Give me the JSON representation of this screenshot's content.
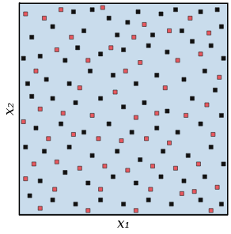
{
  "chart_data": {
    "type": "scatter",
    "x_label": "x₁",
    "y_label": "x₂",
    "xlim": [
      0,
      1
    ],
    "ylim": [
      0,
      1
    ],
    "tick_labels": false,
    "grid": false,
    "series": [
      {
        "color": "#111111",
        "marker": "square",
        "x": [
          0.26,
          0.35,
          0.43,
          0.52,
          0.57,
          0.68,
          0.75,
          0.87,
          0.95,
          0.97,
          0.78,
          0.64,
          0.47,
          0.31,
          0.16,
          0.06,
          0.02,
          0.1,
          0.22,
          0.28,
          0.39,
          0.5,
          0.62,
          0.71,
          0.83,
          0.92,
          0.98,
          0.89,
          0.79,
          0.66,
          0.56,
          0.45,
          0.34,
          0.24,
          0.13,
          0.04,
          0.06,
          0.16,
          0.27,
          0.39,
          0.5,
          0.6,
          0.71,
          0.83,
          0.94,
          0.97,
          0.87,
          0.76,
          0.66,
          0.54,
          0.43,
          0.31,
          0.2,
          0.08,
          0.03,
          0.12,
          0.24,
          0.35,
          0.47,
          0.58,
          0.69,
          0.81,
          0.92,
          0.98,
          0.89,
          0.79,
          0.68,
          0.56,
          0.45,
          0.33,
          0.22,
          0.1,
          0.05,
          0.16,
          0.27,
          0.39,
          0.5,
          0.62,
          0.73,
          0.87,
          0.97
        ],
        "y": [
          0.96,
          0.97,
          0.93,
          0.91,
          0.96,
          0.95,
          0.97,
          0.96,
          0.97,
          0.89,
          0.87,
          0.85,
          0.85,
          0.87,
          0.89,
          0.84,
          0.74,
          0.75,
          0.73,
          0.79,
          0.76,
          0.78,
          0.8,
          0.77,
          0.82,
          0.8,
          0.74,
          0.68,
          0.64,
          0.66,
          0.62,
          0.66,
          0.68,
          0.62,
          0.64,
          0.62,
          0.56,
          0.55,
          0.53,
          0.55,
          0.51,
          0.53,
          0.49,
          0.55,
          0.59,
          0.47,
          0.43,
          0.39,
          0.41,
          0.39,
          0.43,
          0.39,
          0.43,
          0.41,
          0.32,
          0.3,
          0.32,
          0.28,
          0.3,
          0.26,
          0.3,
          0.28,
          0.32,
          0.24,
          0.18,
          0.16,
          0.18,
          0.15,
          0.18,
          0.15,
          0.2,
          0.16,
          0.09,
          0.07,
          0.05,
          0.07,
          0.05,
          0.07,
          0.05,
          0.07,
          0.05
        ]
      },
      {
        "color": "#e8585f",
        "marker": "square",
        "x": [
          0.2,
          0.4,
          0.6,
          0.82,
          0.91,
          0.12,
          0.03,
          0.25,
          0.55,
          0.72,
          0.08,
          0.18,
          0.33,
          0.44,
          0.58,
          0.76,
          0.87,
          0.96,
          0.7,
          0.51,
          0.29,
          0.1,
          0.21,
          0.35,
          0.46,
          0.56,
          0.66,
          0.8,
          0.9,
          0.93,
          0.72,
          0.61,
          0.49,
          0.38,
          0.26,
          0.14,
          0.02,
          0.07,
          0.18,
          0.29,
          0.41,
          0.52,
          0.64,
          0.75,
          0.86,
          0.95,
          0.84,
          0.63,
          0.39,
          0.17,
          0.03,
          0.1,
          0.33,
          0.56,
          0.78,
          0.92
        ],
        "y": [
          0.97,
          0.98,
          0.9,
          0.93,
          0.86,
          0.93,
          0.95,
          0.84,
          0.84,
          0.87,
          0.68,
          0.78,
          0.73,
          0.79,
          0.72,
          0.73,
          0.76,
          0.65,
          0.6,
          0.68,
          0.6,
          0.5,
          0.48,
          0.47,
          0.58,
          0.46,
          0.48,
          0.47,
          0.52,
          0.38,
          0.34,
          0.36,
          0.35,
          0.36,
          0.38,
          0.36,
          0.44,
          0.24,
          0.25,
          0.22,
          0.23,
          0.21,
          0.23,
          0.22,
          0.24,
          0.13,
          0.11,
          0.12,
          0.12,
          0.12,
          0.17,
          0.03,
          0.02,
          0.02,
          0.1,
          0.02
        ]
      }
    ]
  }
}
